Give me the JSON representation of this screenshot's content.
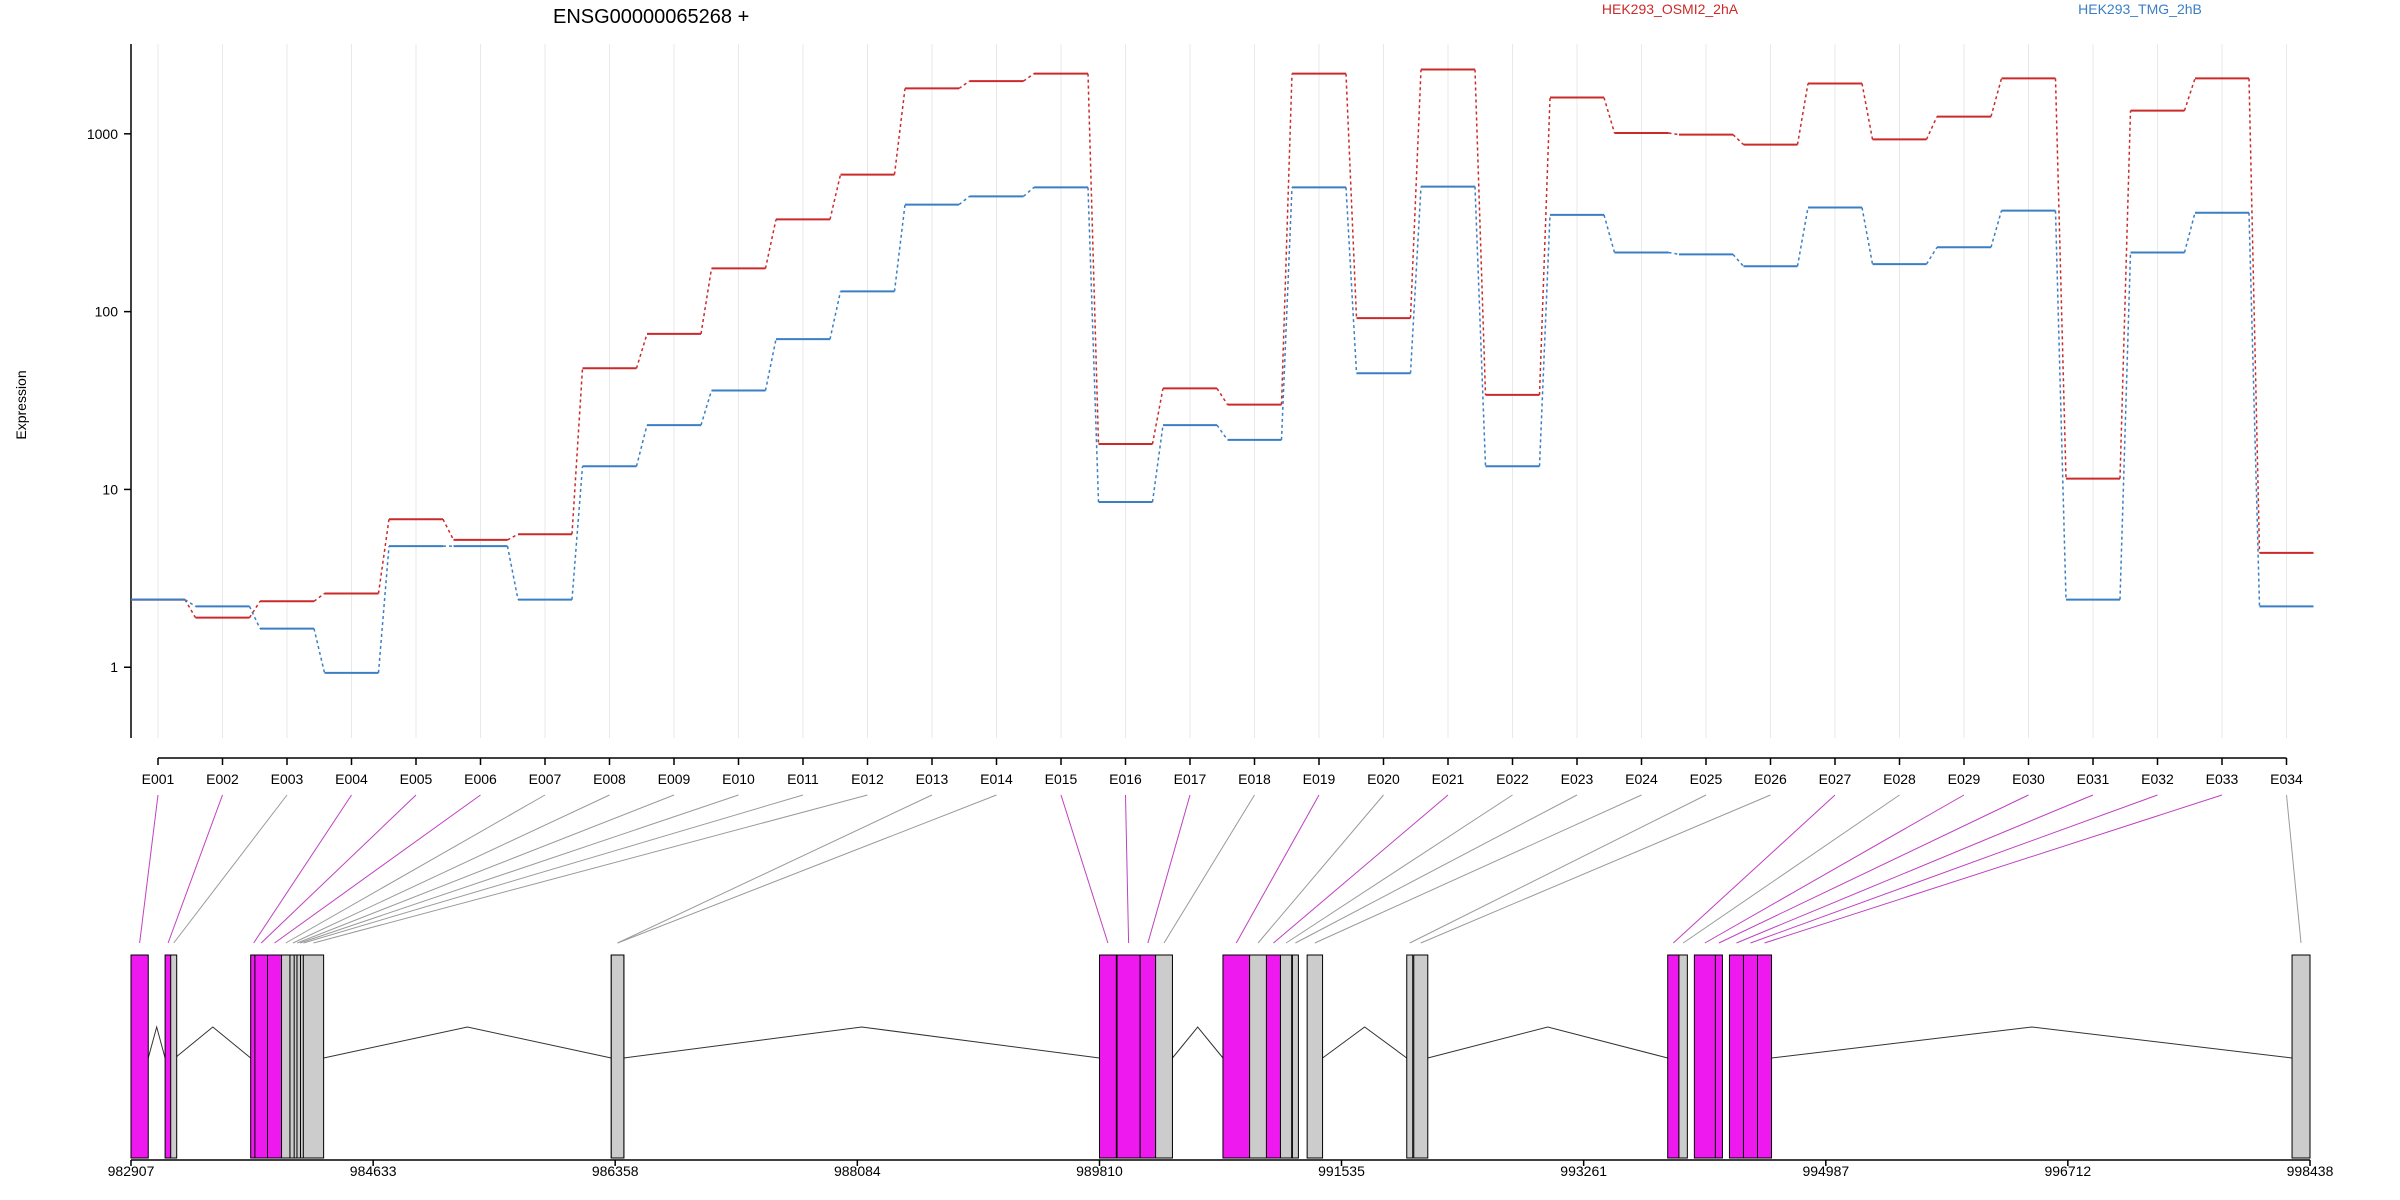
{
  "chart_data": {
    "type": "line",
    "title": "ENSG00000065268 +",
    "ylabel": "Expression",
    "yscale": "log",
    "ylim": [
      0.4,
      3200
    ],
    "yticks": [
      "1",
      "10",
      "100",
      "1000"
    ],
    "grid": true,
    "legend_position": "top-right",
    "categories": [
      "E001",
      "E002",
      "E003",
      "E004",
      "E005",
      "E006",
      "E007",
      "E008",
      "E009",
      "E010",
      "E011",
      "E012",
      "E013",
      "E014",
      "E015",
      "E016",
      "E017",
      "E018",
      "E019",
      "E020",
      "E021",
      "E022",
      "E023",
      "E024",
      "E025",
      "E026",
      "E027",
      "E028",
      "E029",
      "E030",
      "E031",
      "E032",
      "E033",
      "E034"
    ],
    "series": [
      {
        "name": "HEK293_OSMI2_2hA",
        "color": "#cc2a2a",
        "values": [
          2.4,
          1.9,
          2.35,
          2.6,
          6.8,
          5.2,
          5.6,
          48,
          75,
          175,
          330,
          590,
          1800,
          1980,
          2180,
          18,
          37,
          30,
          2180,
          92,
          2300,
          34,
          1600,
          1010,
          990,
          870,
          1920,
          930,
          1250,
          2050,
          11.5,
          1350,
          2050,
          4.4
        ]
      },
      {
        "name": "HEK293_TMG_2hB",
        "color": "#3a7fc4",
        "values": [
          2.4,
          2.2,
          1.65,
          0.93,
          4.8,
          4.8,
          2.4,
          13.5,
          23,
          36,
          70,
          130,
          400,
          445,
          500,
          8.5,
          23,
          19,
          500,
          45,
          505,
          13.5,
          350,
          215,
          210,
          180,
          385,
          185,
          230,
          370,
          2.4,
          215,
          360,
          2.2
        ]
      }
    ],
    "gene_model": {
      "coordinates": [
        "982907",
        "984633",
        "986358",
        "988084",
        "989810",
        "991535",
        "993261",
        "994987",
        "996712",
        "998438"
      ],
      "fill_colors": {
        "differential": "#ee19ee",
        "other": "#cccccc"
      },
      "exon_status": [
        "differential",
        "differential",
        "other",
        "differential",
        "differential",
        "differential",
        "other",
        "other",
        "other",
        "other",
        "other",
        "other",
        "other",
        "other",
        "differential",
        "differential",
        "differential",
        "other",
        "differential",
        "other",
        "differential",
        "other",
        "other",
        "other",
        "other",
        "other",
        "differential",
        "other",
        "differential",
        "differential",
        "differential",
        "differential",
        "differential",
        "other"
      ]
    }
  }
}
